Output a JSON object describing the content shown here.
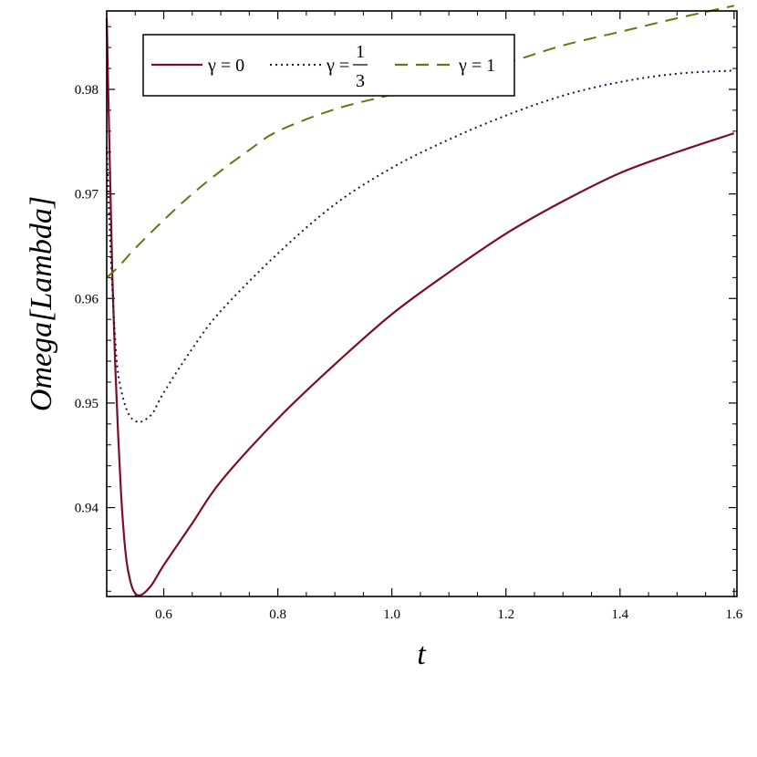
{
  "chart_data": {
    "type": "line",
    "title": "",
    "xlabel": "t",
    "ylabel": "Omega[Lambda]",
    "xlim": [
      0.5,
      1.605
    ],
    "ylim": [
      0.9315,
      0.9875
    ],
    "x_ticks": [
      0.6,
      0.8,
      1.0,
      1.2,
      1.4,
      1.6
    ],
    "x_tick_labels": [
      "0.6",
      "0.8",
      "1.0",
      "1.2",
      "1.4",
      "1.6"
    ],
    "y_ticks": [
      0.94,
      0.95,
      0.96,
      0.97,
      0.98
    ],
    "y_tick_labels": [
      "0.94",
      "0.95",
      "0.96",
      "0.97",
      "0.98"
    ],
    "grid": false,
    "legend_position": "top-left",
    "series": [
      {
        "name": "γ = 0",
        "color": "#7b0f24",
        "style": "solid",
        "x": [
          0.5,
          0.505,
          0.51,
          0.515,
          0.52,
          0.525,
          0.53,
          0.535,
          0.54,
          0.545,
          0.55,
          0.556,
          0.565,
          0.58,
          0.6,
          0.65,
          0.7,
          0.8,
          0.9,
          1.0,
          1.1,
          1.2,
          1.3,
          1.4,
          1.5,
          1.6
        ],
        "y": [
          0.9868,
          0.974,
          0.962,
          0.9535,
          0.947,
          0.9415,
          0.9375,
          0.9348,
          0.9333,
          0.9323,
          0.9318,
          0.9316,
          0.9318,
          0.9327,
          0.9345,
          0.9385,
          0.9425,
          0.9485,
          0.9537,
          0.9585,
          0.9625,
          0.9662,
          0.9693,
          0.972,
          0.974,
          0.9758
        ]
      },
      {
        "name": "γ = 1/3",
        "color": "#1a1a4a",
        "style": "dotted",
        "x": [
          0.5,
          0.505,
          0.51,
          0.515,
          0.52,
          0.53,
          0.54,
          0.55,
          0.56,
          0.58,
          0.6,
          0.65,
          0.7,
          0.8,
          0.9,
          1.0,
          1.1,
          1.2,
          1.3,
          1.4,
          1.5,
          1.6
        ],
        "y": [
          0.9745,
          0.967,
          0.9608,
          0.956,
          0.9528,
          0.9502,
          0.9488,
          0.9483,
          0.9482,
          0.949,
          0.951,
          0.9552,
          0.9588,
          0.9643,
          0.969,
          0.9725,
          0.9752,
          0.9775,
          0.9794,
          0.9807,
          0.9815,
          0.9818
        ]
      },
      {
        "name": "γ = 1",
        "color": "#5a7a12",
        "style": "dashed",
        "x": [
          0.5,
          0.52,
          0.55,
          0.6,
          0.65,
          0.7,
          0.75,
          0.8,
          0.9,
          1.0,
          1.1,
          1.2,
          1.3,
          1.4,
          1.5,
          1.6
        ],
        "y": [
          0.962,
          0.963,
          0.9648,
          0.9675,
          0.97,
          0.9722,
          0.9742,
          0.976,
          0.9781,
          0.9795,
          0.981,
          0.9825,
          0.9842,
          0.9855,
          0.9868,
          0.988
        ]
      }
    ]
  },
  "legend": {
    "entries": [
      {
        "prefix": "γ = 0"
      },
      {
        "prefix": "γ =",
        "numerator": "1",
        "denominator": "3"
      },
      {
        "prefix": "γ = 1"
      }
    ]
  }
}
